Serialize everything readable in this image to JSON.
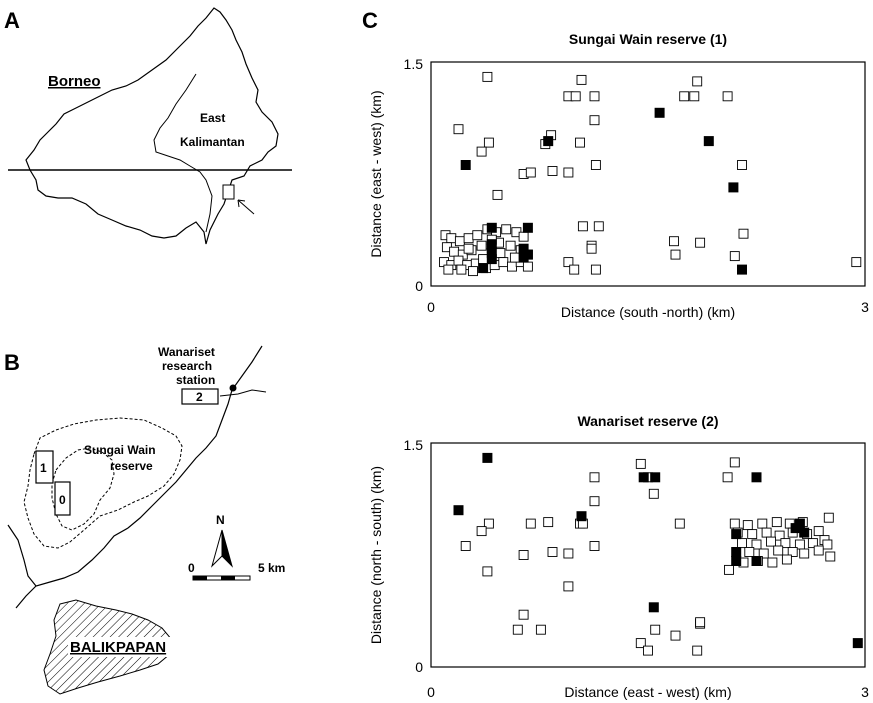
{
  "panels": {
    "a": "A",
    "b": "B",
    "c": "C"
  },
  "map_a": {
    "island": "Borneo",
    "province_line1": "East",
    "province_line2": "Kalimantan"
  },
  "map_b": {
    "station_line1": "Wanariset",
    "station_line2": "research",
    "station_line3": "station",
    "reserve_line1": "Sungai Wain",
    "reserve_line2": "reserve",
    "plot_labels": [
      "1",
      "0",
      "2"
    ],
    "city": "BALIKPAPAN",
    "north": "N",
    "scale_start": "0",
    "scale_end": "5 km"
  },
  "chart_data": [
    {
      "type": "scatter",
      "title": "Sungai Wain reserve (1)",
      "xlabel": "Distance (south -north) (km)",
      "ylabel": "Distance (east - west) (km)",
      "xlim": [
        0,
        3
      ],
      "ylim": [
        0,
        1.5
      ],
      "xticks": [
        "0",
        "3"
      ],
      "yticks": [
        "0",
        "1.5"
      ],
      "series": [
        {
          "color": "#ffffff",
          "points": [
            [
              0.39,
              1.4
            ],
            [
              0.19,
              1.05
            ],
            [
              0.4,
              0.96
            ],
            [
              0.35,
              0.9
            ],
            [
              0.46,
              0.61
            ],
            [
              0.64,
              0.75
            ],
            [
              1.04,
              1.38
            ],
            [
              0.95,
              1.27
            ],
            [
              1.0,
              1.27
            ],
            [
              1.13,
              1.27
            ],
            [
              1.13,
              1.11
            ],
            [
              1.03,
              0.96
            ],
            [
              0.83,
              1.01
            ],
            [
              0.79,
              0.95
            ],
            [
              0.95,
              0.76
            ],
            [
              1.14,
              0.81
            ],
            [
              1.16,
              0.4
            ],
            [
              0.69,
              0.76
            ],
            [
              0.84,
              0.77
            ],
            [
              1.11,
              0.27
            ],
            [
              0.95,
              0.16
            ],
            [
              1.11,
              0.25
            ],
            [
              0.99,
              0.11
            ],
            [
              1.14,
              0.11
            ],
            [
              1.84,
              1.37
            ],
            [
              1.75,
              1.27
            ],
            [
              1.82,
              1.27
            ],
            [
              2.05,
              1.27
            ],
            [
              2.15,
              0.81
            ],
            [
              2.16,
              0.35
            ],
            [
              2.1,
              0.2
            ],
            [
              1.86,
              0.29
            ],
            [
              1.68,
              0.3
            ],
            [
              1.69,
              0.21
            ],
            [
              2.94,
              0.16
            ],
            [
              1.05,
              0.4
            ],
            [
              0.1,
              0.34
            ],
            [
              0.14,
              0.32
            ],
            [
              0.2,
              0.3
            ],
            [
              0.26,
              0.32
            ],
            [
              0.32,
              0.34
            ],
            [
              0.39,
              0.38
            ],
            [
              0.45,
              0.36
            ],
            [
              0.52,
              0.38
            ],
            [
              0.59,
              0.36
            ],
            [
              0.64,
              0.33
            ],
            [
              0.11,
              0.26
            ],
            [
              0.16,
              0.23
            ],
            [
              0.22,
              0.21
            ],
            [
              0.28,
              0.24
            ],
            [
              0.35,
              0.27
            ],
            [
              0.42,
              0.25
            ],
            [
              0.48,
              0.22
            ],
            [
              0.55,
              0.27
            ],
            [
              0.62,
              0.24
            ],
            [
              0.67,
              0.21
            ],
            [
              0.09,
              0.16
            ],
            [
              0.14,
              0.14
            ],
            [
              0.19,
              0.17
            ],
            [
              0.25,
              0.14
            ],
            [
              0.31,
              0.15
            ],
            [
              0.38,
              0.12
            ],
            [
              0.44,
              0.14
            ],
            [
              0.5,
              0.16
            ],
            [
              0.56,
              0.13
            ],
            [
              0.62,
              0.16
            ],
            [
              0.67,
              0.13
            ],
            [
              0.12,
              0.11
            ],
            [
              0.21,
              0.11
            ],
            [
              0.29,
              0.1
            ],
            [
              0.36,
              0.18
            ],
            [
              0.47,
              0.29
            ],
            [
              0.58,
              0.19
            ],
            [
              0.26,
              0.25
            ],
            [
              0.42,
              0.31
            ]
          ]
        },
        {
          "color": "#000000",
          "points": [
            [
              0.24,
              0.81
            ],
            [
              0.81,
              0.97
            ],
            [
              1.58,
              1.16
            ],
            [
              1.92,
              0.97
            ],
            [
              2.09,
              0.66
            ],
            [
              2.15,
              0.11
            ],
            [
              0.42,
              0.39
            ],
            [
              0.67,
              0.39
            ],
            [
              0.42,
              0.28
            ],
            [
              0.42,
              0.22
            ],
            [
              0.42,
              0.18
            ],
            [
              0.64,
              0.25
            ],
            [
              0.64,
              0.19
            ],
            [
              0.67,
              0.21
            ],
            [
              0.36,
              0.12
            ]
          ]
        }
      ]
    },
    {
      "type": "scatter",
      "title": "Wanariset reserve (2)",
      "xlabel": "Distance (east - west) (km)",
      "ylabel": "Distance (north - south) (km)",
      "xlim": [
        0,
        3
      ],
      "ylim": [
        0,
        1.5
      ],
      "xticks": [
        "0",
        "3"
      ],
      "yticks": [
        "0",
        "1.5"
      ],
      "series": [
        {
          "color": "#ffffff",
          "points": [
            [
              0.4,
              0.96
            ],
            [
              0.35,
              0.91
            ],
            [
              0.24,
              0.81
            ],
            [
              0.39,
              0.64
            ],
            [
              0.64,
              0.75
            ],
            [
              0.69,
              0.96
            ],
            [
              0.81,
              0.97
            ],
            [
              0.84,
              0.77
            ],
            [
              0.95,
              0.76
            ],
            [
              1.03,
              0.96
            ],
            [
              1.13,
              0.81
            ],
            [
              1.05,
              0.96
            ],
            [
              1.13,
              1.11
            ],
            [
              1.5,
              1.27
            ],
            [
              1.45,
              1.36
            ],
            [
              1.54,
              1.16
            ],
            [
              1.72,
              0.96
            ],
            [
              1.13,
              1.27
            ],
            [
              0.95,
              0.54
            ],
            [
              0.64,
              0.35
            ],
            [
              0.6,
              0.25
            ],
            [
              0.76,
              0.25
            ],
            [
              1.45,
              0.16
            ],
            [
              1.55,
              0.25
            ],
            [
              1.5,
              0.11
            ],
            [
              1.86,
              0.29
            ],
            [
              1.84,
              0.11
            ],
            [
              1.69,
              0.21
            ],
            [
              1.86,
              0.3
            ],
            [
              2.05,
              1.27
            ],
            [
              2.1,
              1.37
            ],
            [
              2.1,
              0.96
            ],
            [
              2.19,
              0.95
            ],
            [
              2.29,
              0.96
            ],
            [
              2.39,
              0.97
            ],
            [
              2.48,
              0.96
            ],
            [
              2.57,
              0.97
            ],
            [
              2.75,
              1.0
            ],
            [
              2.12,
              0.9
            ],
            [
              2.22,
              0.89
            ],
            [
              2.32,
              0.9
            ],
            [
              2.41,
              0.88
            ],
            [
              2.5,
              0.9
            ],
            [
              2.6,
              0.89
            ],
            [
              2.68,
              0.91
            ],
            [
              2.72,
              0.85
            ],
            [
              2.15,
              0.83
            ],
            [
              2.25,
              0.82
            ],
            [
              2.35,
              0.84
            ],
            [
              2.45,
              0.83
            ],
            [
              2.55,
              0.82
            ],
            [
              2.64,
              0.83
            ],
            [
              2.74,
              0.82
            ],
            [
              2.2,
              0.77
            ],
            [
              2.3,
              0.76
            ],
            [
              2.4,
              0.78
            ],
            [
              2.5,
              0.77
            ],
            [
              2.58,
              0.76
            ],
            [
              2.68,
              0.78
            ],
            [
              2.76,
              0.74
            ],
            [
              2.26,
              0.71
            ],
            [
              2.36,
              0.7
            ],
            [
              2.46,
              0.72
            ],
            [
              2.16,
              0.7
            ],
            [
              2.06,
              0.65
            ]
          ]
        },
        {
          "color": "#000000",
          "points": [
            [
              0.39,
              1.4
            ],
            [
              0.19,
              1.05
            ],
            [
              1.04,
              1.01
            ],
            [
              1.47,
              1.27
            ],
            [
              1.55,
              1.27
            ],
            [
              2.25,
              1.27
            ],
            [
              1.54,
              0.4
            ],
            [
              2.95,
              0.16
            ],
            [
              2.11,
              0.89
            ],
            [
              2.11,
              0.77
            ],
            [
              2.11,
              0.71
            ],
            [
              2.25,
              0.71
            ],
            [
              2.52,
              0.93
            ],
            [
              2.55,
              0.96
            ],
            [
              2.58,
              0.9
            ]
          ]
        }
      ]
    }
  ]
}
